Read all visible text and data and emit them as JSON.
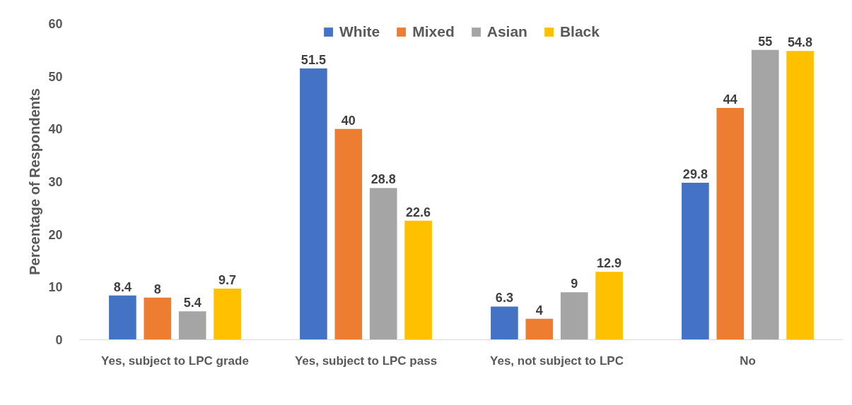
{
  "chart_data": {
    "type": "bar",
    "ylabel": "Percentage of Respondents",
    "categories": [
      "Yes, subject to LPC grade",
      "Yes, subject to LPC pass",
      "Yes, not subject to LPC",
      "No"
    ],
    "series": [
      {
        "name": "White",
        "color": "#4472c4",
        "values": [
          8.4,
          51.5,
          6.3,
          29.8
        ]
      },
      {
        "name": "Mixed",
        "color": "#ed7d31",
        "values": [
          8,
          40,
          4,
          44
        ]
      },
      {
        "name": "Asian",
        "color": "#a5a5a5",
        "values": [
          5.4,
          28.8,
          9,
          55
        ]
      },
      {
        "name": "Black",
        "color": "#ffc000",
        "values": [
          9.7,
          22.6,
          12.9,
          54.8
        ]
      }
    ],
    "ylim": [
      0,
      60
    ],
    "yticks": [
      0,
      10,
      20,
      30,
      40,
      50,
      60
    ],
    "data_labels": true,
    "legend": "top",
    "grid": false
  }
}
